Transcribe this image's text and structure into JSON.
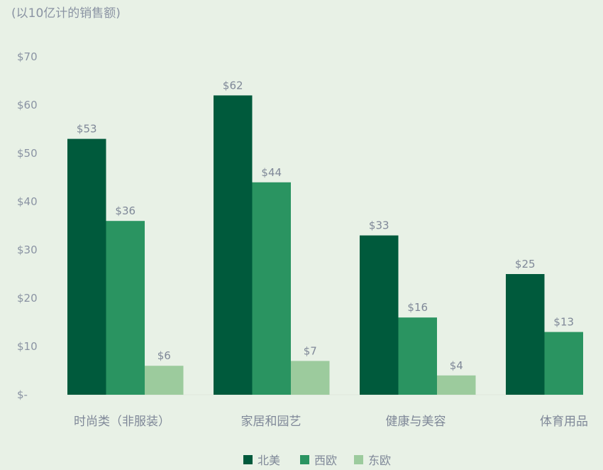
{
  "chart_data": {
    "type": "bar",
    "unit_label": "(以10亿计的销售额)",
    "categories": [
      "时尚类（非服装）",
      "家居和园艺",
      "健康与美容",
      "体育用品"
    ],
    "series": [
      {
        "name": "北美",
        "color": "#005a3c",
        "values": [
          53,
          62,
          33,
          25
        ],
        "labels": [
          "$53",
          "$62",
          "$33",
          "$25"
        ]
      },
      {
        "name": "西欧",
        "color": "#2a9461",
        "values": [
          36,
          44,
          16,
          13
        ],
        "labels": [
          "$36",
          "$44",
          "$16",
          "$13"
        ]
      },
      {
        "name": "东欧",
        "color": "#9ccb9d",
        "values": [
          6,
          7,
          4,
          null
        ],
        "labels": [
          "$6",
          "$7",
          "$4",
          ""
        ]
      }
    ],
    "y_ticks": [
      0,
      10,
      20,
      30,
      40,
      50,
      60,
      70
    ],
    "y_tick_labels": [
      "$-",
      "$10",
      "$20",
      "$30",
      "$40",
      "$50",
      "$60",
      "$70"
    ],
    "ylim": [
      0,
      70
    ],
    "grid": false,
    "legend_position": "bottom-center"
  }
}
